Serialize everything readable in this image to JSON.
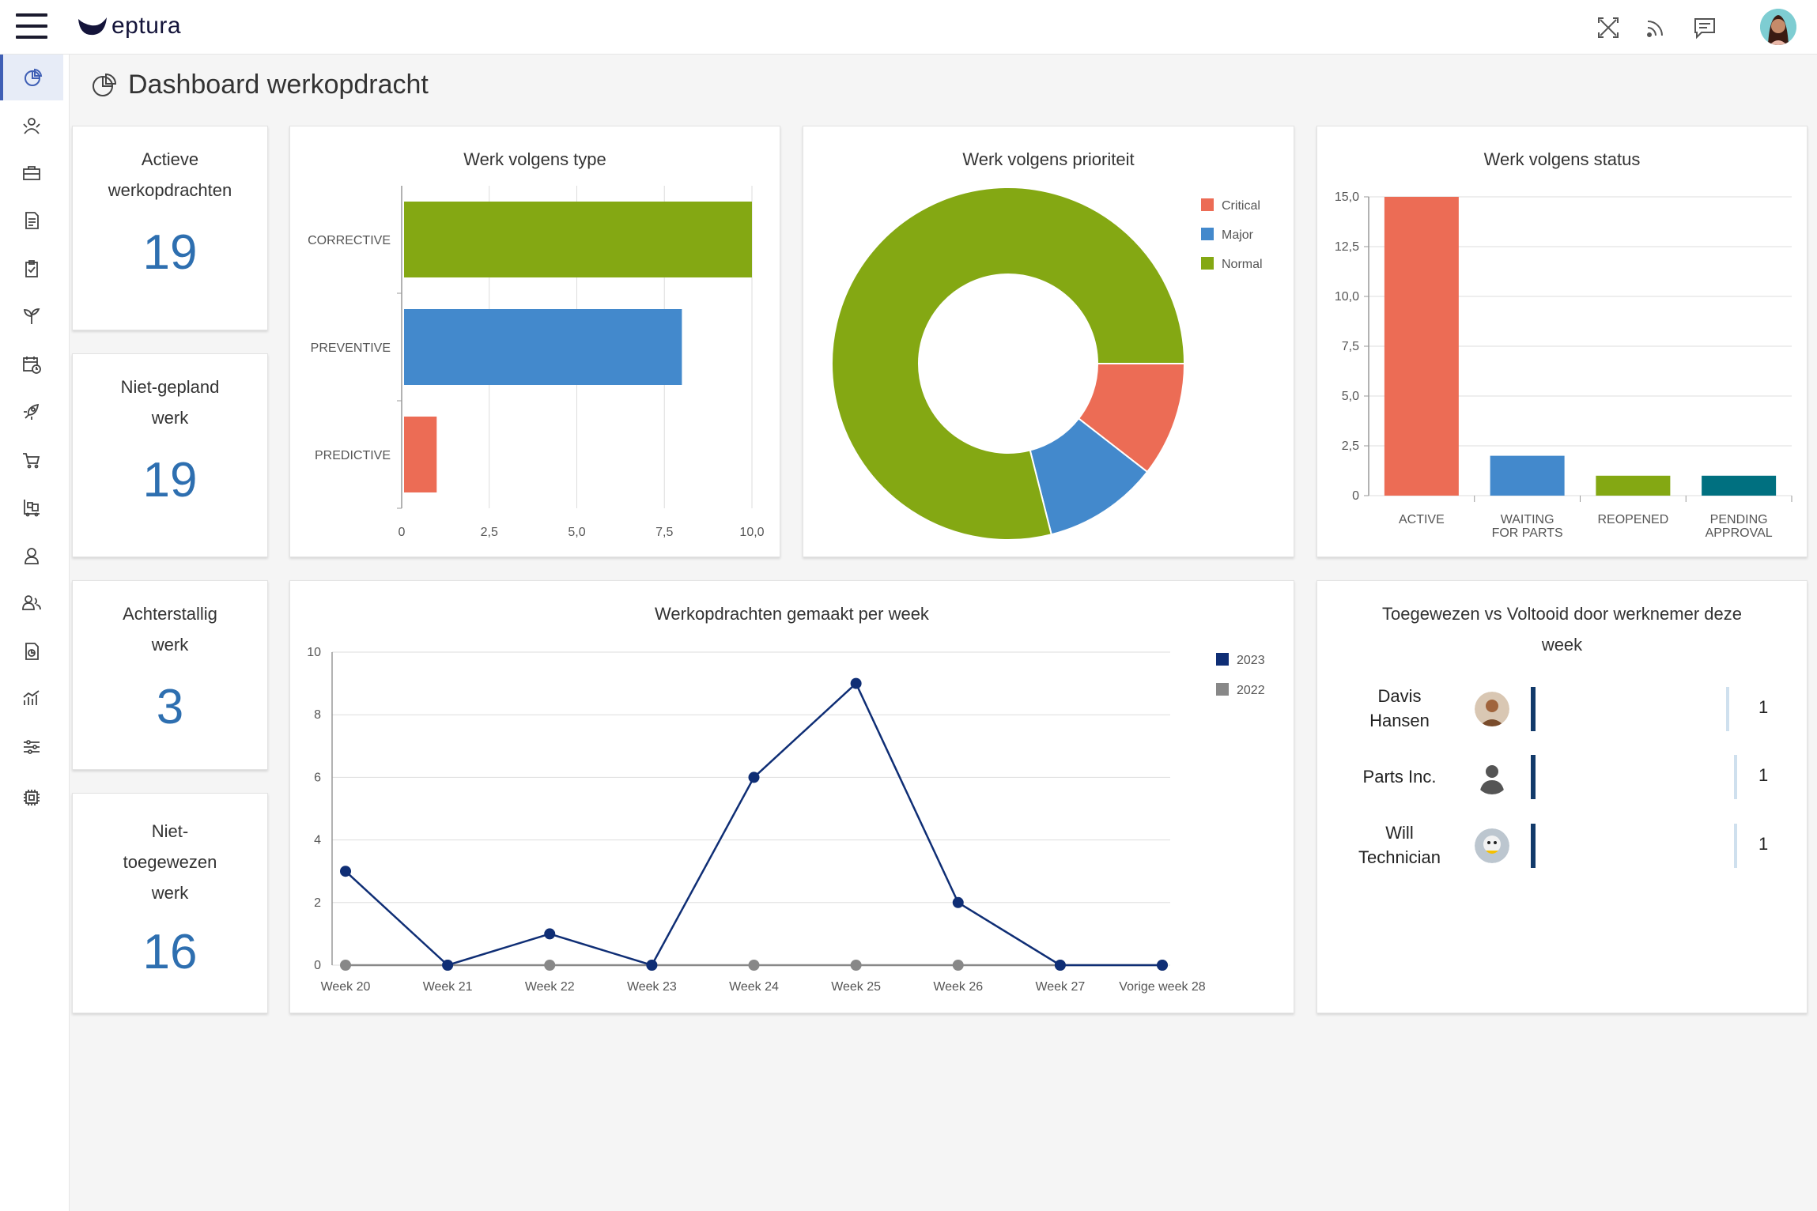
{
  "header": {
    "logo_text": "eptura",
    "icons": [
      "menu-icon",
      "scan-icon",
      "feed-icon",
      "chat-icon",
      "user-avatar"
    ]
  },
  "sidebar": {
    "icons": [
      "dashboard-icon",
      "people-icon",
      "toolbox-icon",
      "document-icon",
      "clipboard-check-icon",
      "plant-icon",
      "calendar-clock-icon",
      "rocket-icon",
      "cart-icon",
      "forklift-icon",
      "user-icon",
      "team-icon",
      "report-icon",
      "analytics-icon",
      "sliders-icon",
      "chip-icon"
    ]
  },
  "page": {
    "title": "Dashboard werkopdracht"
  },
  "kpis": [
    {
      "label_lines": [
        "Actieve",
        "werkopdrachten"
      ],
      "value": "19"
    },
    {
      "label_lines": [
        "Niet-gepland",
        "werk"
      ],
      "value": "19"
    },
    {
      "label_lines": [
        "Achterstallig",
        "werk"
      ],
      "value": "3"
    },
    {
      "label_lines": [
        "Niet-",
        "toegewezen",
        "werk"
      ],
      "value": "16"
    }
  ],
  "chart_data": [
    {
      "type": "bar",
      "orientation": "horizontal",
      "title": "Werk volgens type",
      "categories": [
        "CORRECTIVE",
        "PREVENTIVE",
        "PREDICTIVE"
      ],
      "values": [
        10,
        8,
        1
      ],
      "colors": [
        "#84a813",
        "#4389cc",
        "#ec6c55"
      ],
      "xlim": [
        0,
        10
      ],
      "xticks": [
        "0",
        "2,5",
        "5,0",
        "7,5",
        "10,0"
      ],
      "grid": true
    },
    {
      "type": "pie",
      "variant": "donut",
      "title": "Werk volgens prioriteit",
      "labels": [
        "Critical",
        "Major",
        "Normal"
      ],
      "values": [
        2,
        2,
        15
      ],
      "colors": [
        "#ec6c55",
        "#4389cc",
        "#84a813"
      ],
      "legend": "top-right"
    },
    {
      "type": "bar",
      "title": "Werk volgens status",
      "categories": [
        [
          "ACTIVE"
        ],
        [
          "WAITING",
          "FOR PARTS"
        ],
        [
          "REOPENED"
        ],
        [
          "PENDING",
          "APPROVAL"
        ]
      ],
      "values": [
        15,
        2,
        1,
        1
      ],
      "colors": [
        "#ec6c55",
        "#4389cc",
        "#84a813",
        "#007080"
      ],
      "ylim": [
        0,
        15
      ],
      "yticks": [
        "0",
        "2,5",
        "5,0",
        "7,5",
        "10,0",
        "12,5",
        "15,0"
      ],
      "grid": true
    },
    {
      "type": "line",
      "title": "Werkopdrachten gemaakt per week",
      "x": [
        "Week 20",
        "Week 21",
        "Week 22",
        "Week 23",
        "Week 24",
        "Week 25",
        "Week 26",
        "Week 27",
        "Vorige week 28"
      ],
      "series": [
        {
          "name": "2023",
          "values": [
            3,
            0,
            1,
            0,
            6,
            9,
            2,
            0,
            0
          ],
          "color": "#0f2e75"
        },
        {
          "name": "2022",
          "values": [
            0,
            0,
            0,
            0,
            0,
            0,
            0,
            0,
            0
          ],
          "color": "#888888"
        }
      ],
      "ylim": [
        0,
        10
      ],
      "yticks": [
        "0",
        "2",
        "4",
        "6",
        "8",
        "10"
      ],
      "legend": "top-right",
      "grid": true
    }
  ],
  "assignments": {
    "title_lines": [
      "Toegewezen vs Voltooid door werknemer deze",
      "week"
    ],
    "rows": [
      {
        "name_lines": [
          "Davis",
          "Hansen"
        ],
        "count": "1"
      },
      {
        "name_lines": [
          "Parts Inc."
        ],
        "count": "1"
      },
      {
        "name_lines": [
          "Will",
          "Technician"
        ],
        "count": "1"
      }
    ]
  }
}
